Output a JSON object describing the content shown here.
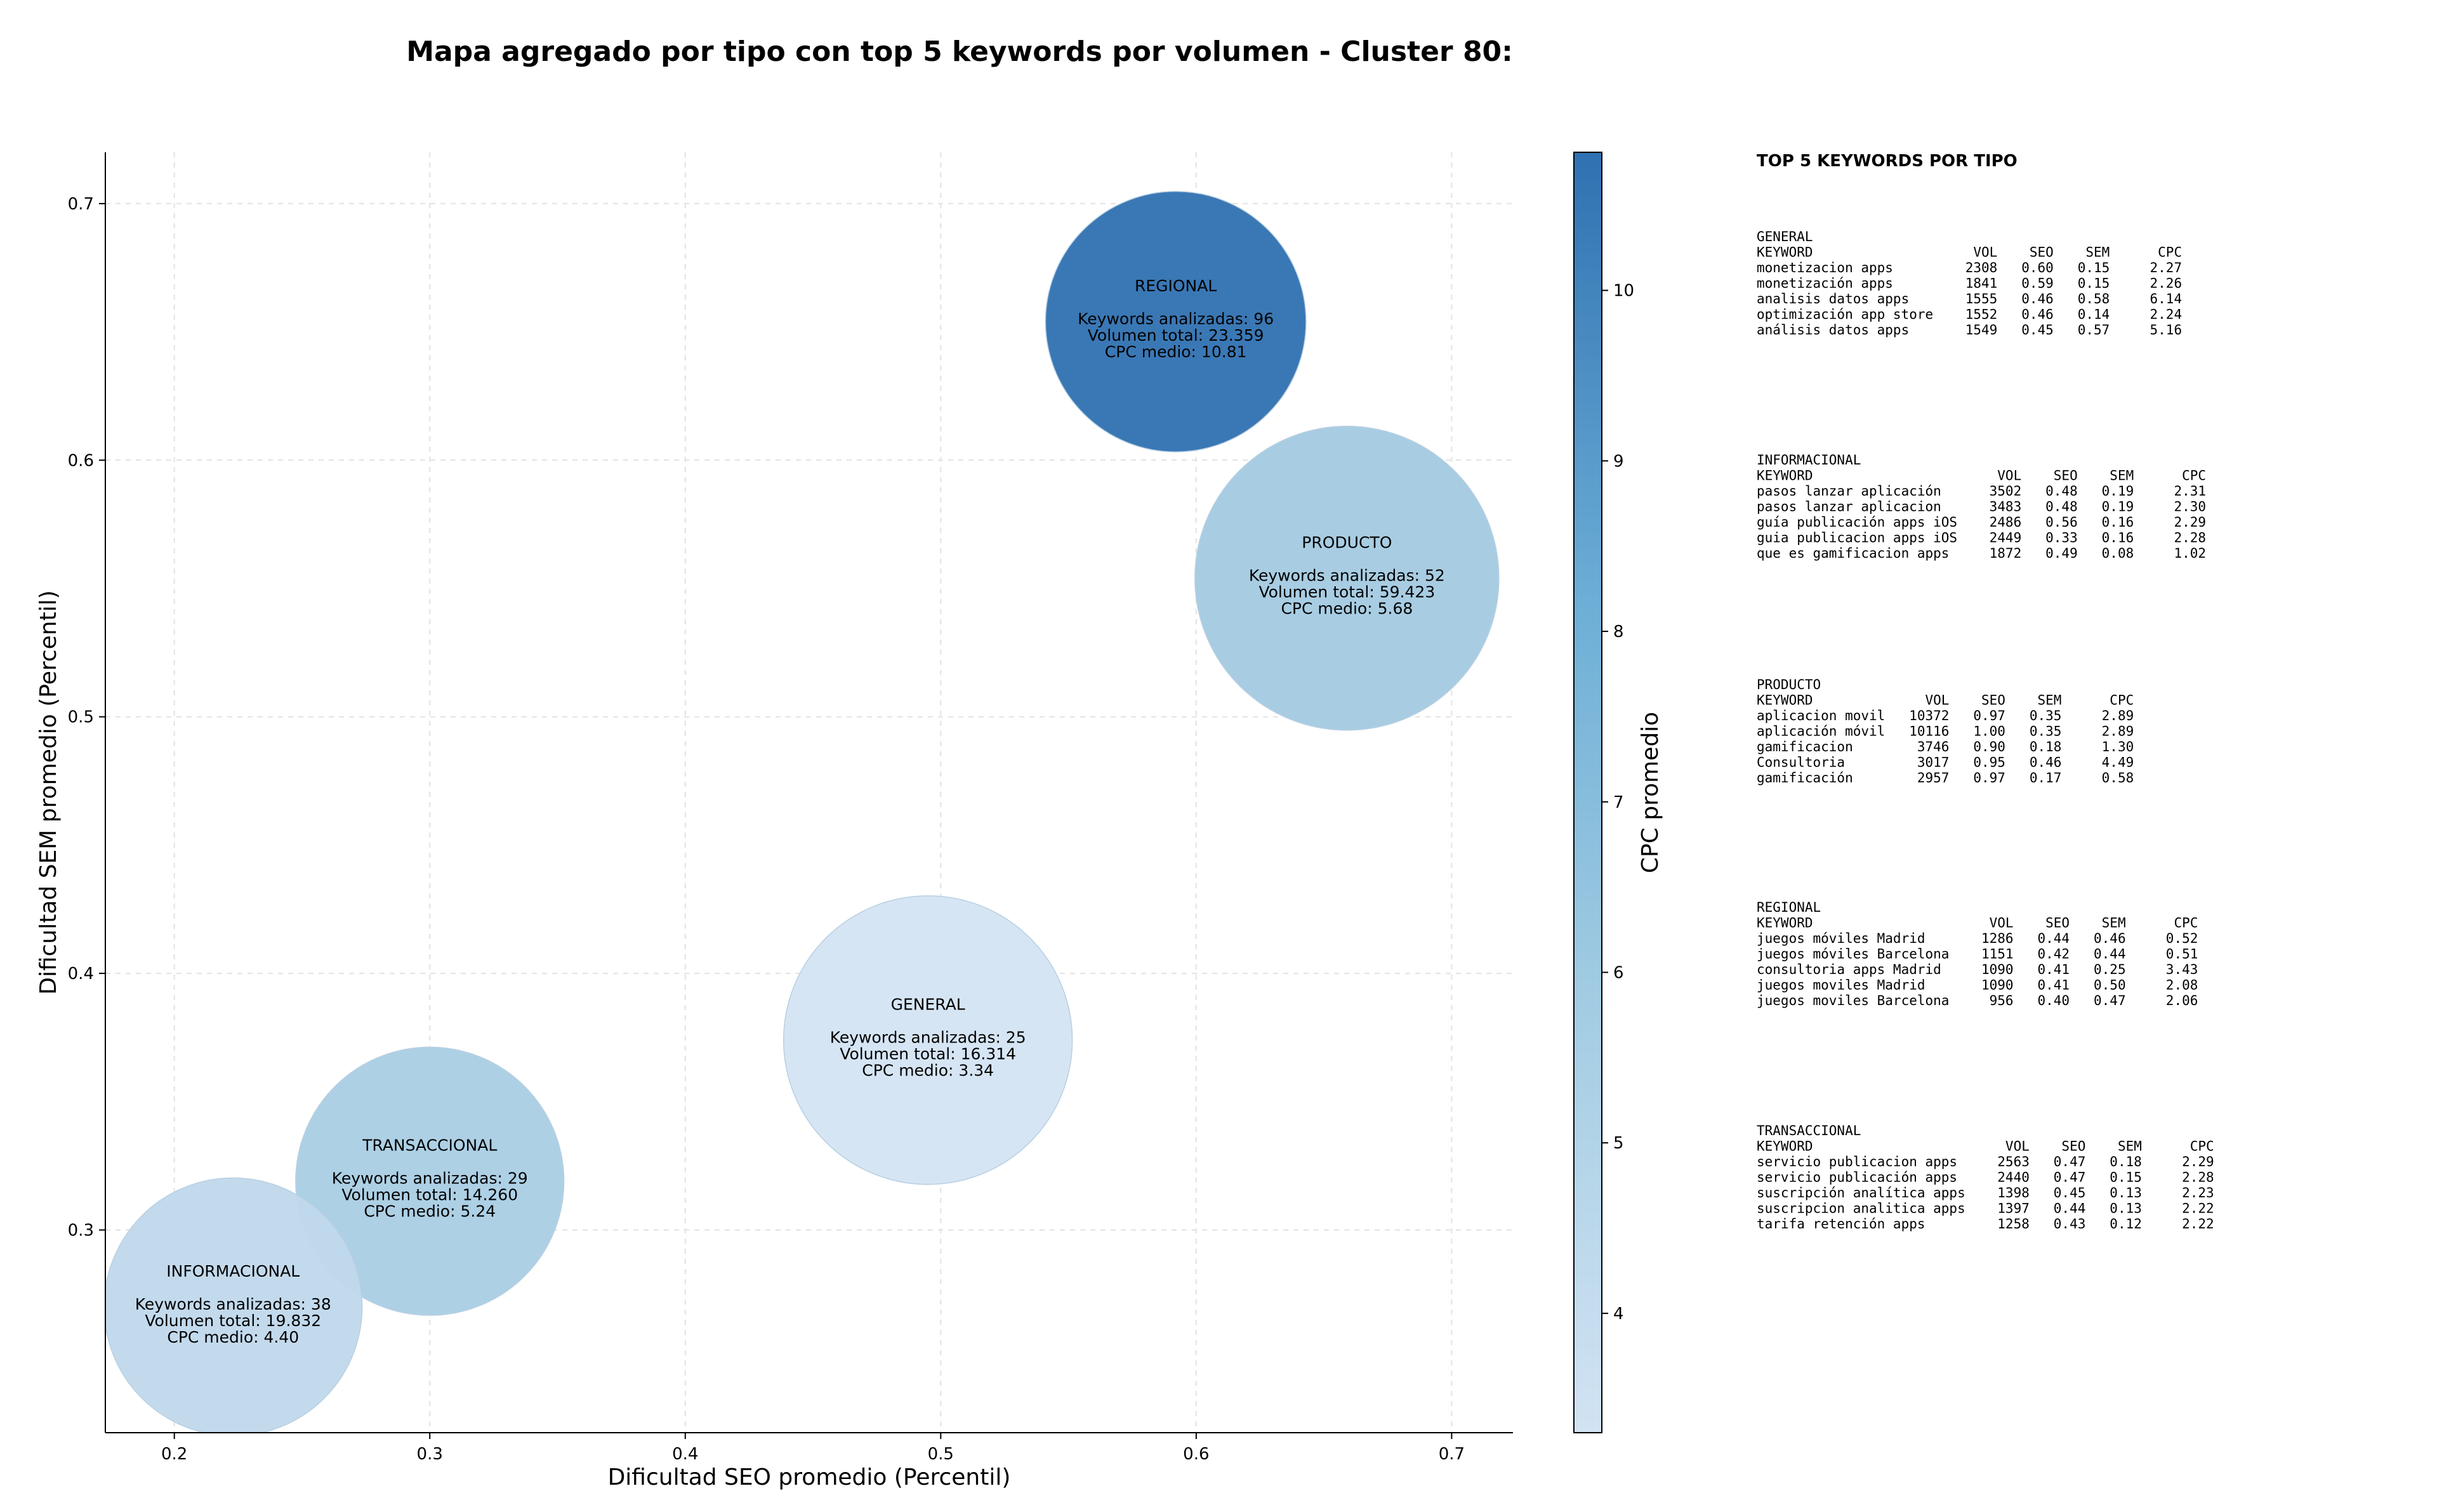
{
  "chart_data": {
    "type": "scatter",
    "title": "Mapa agregado por tipo con top 5 keywords por volumen - Cluster 80:",
    "xlabel": "Dificultad SEO promedio (Percentil)",
    "ylabel": "Dificultad SEM promedio (Percentil)",
    "colorbar_label": "CPC promedio",
    "xlim": [
      0.173,
      0.724
    ],
    "ylim": [
      0.221,
      0.72
    ],
    "xticks": [
      "0.2",
      "0.3",
      "0.4",
      "0.5",
      "0.6",
      "0.7"
    ],
    "yticks": [
      "0.3",
      "0.4",
      "0.5",
      "0.6",
      "0.7"
    ],
    "colorbar_range": [
      3.3,
      10.81
    ],
    "colorbar_ticks": [
      "4",
      "5",
      "6",
      "7",
      "8",
      "9",
      "10"
    ],
    "grid": true,
    "points": [
      {
        "name": "REGIONAL",
        "x": 0.592,
        "y": 0.654,
        "keywords_label": "Keywords analizadas: 96",
        "volume_label": "Volumen total: 23.359",
        "cpc_label": "CPC medio: 10.81",
        "cpc": 10.81,
        "color": "#2f71b1",
        "radius_x": 0.051
      },
      {
        "name": "PRODUCTO",
        "x": 0.659,
        "y": 0.554,
        "keywords_label": "Keywords analizadas: 52",
        "volume_label": "Volumen total: 59.423",
        "cpc_label": "CPC medio: 5.68",
        "cpc": 5.68,
        "color": "#a3cae2",
        "radius_x": 0.0595
      },
      {
        "name": "GENERAL",
        "x": 0.495,
        "y": 0.374,
        "keywords_label": "Keywords analizadas: 25",
        "volume_label": "Volumen total: 16.314",
        "cpc_label": "CPC medio: 3.34",
        "cpc": 3.34,
        "color": "#d4e4f3",
        "radius_x": 0.0565
      },
      {
        "name": "TRANSACCIONAL",
        "x": 0.3,
        "y": 0.319,
        "keywords_label": "Keywords analizadas: 29",
        "volume_label": "Volumen total: 14.260",
        "cpc_label": "CPC medio: 5.24",
        "cpc": 5.24,
        "color": "#a9cde4",
        "radius_x": 0.0525
      },
      {
        "name": "INFORMACIONAL",
        "x": 0.223,
        "y": 0.27,
        "keywords_label": "Keywords analizadas: 38",
        "volume_label": "Volumen total: 19.832",
        "cpc_label": "CPC medio: 4.40",
        "cpc": 4.4,
        "color": "#c0d8ec",
        "radius_x": 0.0505
      }
    ],
    "side_panel": {
      "heading": "TOP 5 KEYWORDS POR TIPO",
      "groups": [
        {
          "name": "GENERAL",
          "lines": [
            "KEYWORD                    VOL    SEO    SEM      CPC",
            "monetizacion apps         2308   0.60   0.15     2.27",
            "monetización apps         1841   0.59   0.15     2.26",
            "analisis datos apps       1555   0.46   0.58     6.14",
            "optimización app store    1552   0.46   0.14     2.24",
            "análisis datos apps       1549   0.45   0.57     5.16"
          ]
        },
        {
          "name": "INFORMACIONAL",
          "lines": [
            "KEYWORD                       VOL    SEO    SEM      CPC",
            "pasos lanzar aplicación      3502   0.48   0.19     2.31",
            "pasos lanzar aplicacion      3483   0.48   0.19     2.30",
            "guía publicación apps iOS    2486   0.56   0.16     2.29",
            "guia publicacion apps iOS    2449   0.33   0.16     2.28",
            "que es gamificacion apps     1872   0.49   0.08     1.02"
          ]
        },
        {
          "name": "PRODUCTO",
          "lines": [
            "KEYWORD              VOL    SEO    SEM      CPC",
            "aplicacion movil   10372   0.97   0.35     2.89",
            "aplicación móvil   10116   1.00   0.35     2.89",
            "gamificacion        3746   0.90   0.18     1.30",
            "Consultoria         3017   0.95   0.46     4.49",
            "gamificación        2957   0.97   0.17     0.58"
          ]
        },
        {
          "name": "REGIONAL",
          "lines": [
            "KEYWORD                      VOL    SEO    SEM      CPC",
            "juegos móviles Madrid       1286   0.44   0.46     0.52",
            "juegos móviles Barcelona    1151   0.42   0.44     0.51",
            "consultoria apps Madrid     1090   0.41   0.25     3.43",
            "juegos moviles Madrid       1090   0.41   0.50     2.08",
            "juegos moviles Barcelona     956   0.40   0.47     2.06"
          ]
        },
        {
          "name": "TRANSACCIONAL",
          "lines": [
            "KEYWORD                        VOL    SEO    SEM      CPC",
            "servicio publicacion apps     2563   0.47   0.18     2.29",
            "servicio publicación apps     2440   0.47   0.15     2.28",
            "suscripción analítica apps    1398   0.45   0.13     2.23",
            "suscripcion analitica apps    1397   0.44   0.13     2.22",
            "tarifa retención apps         1258   0.43   0.12     2.22"
          ]
        }
      ]
    }
  }
}
